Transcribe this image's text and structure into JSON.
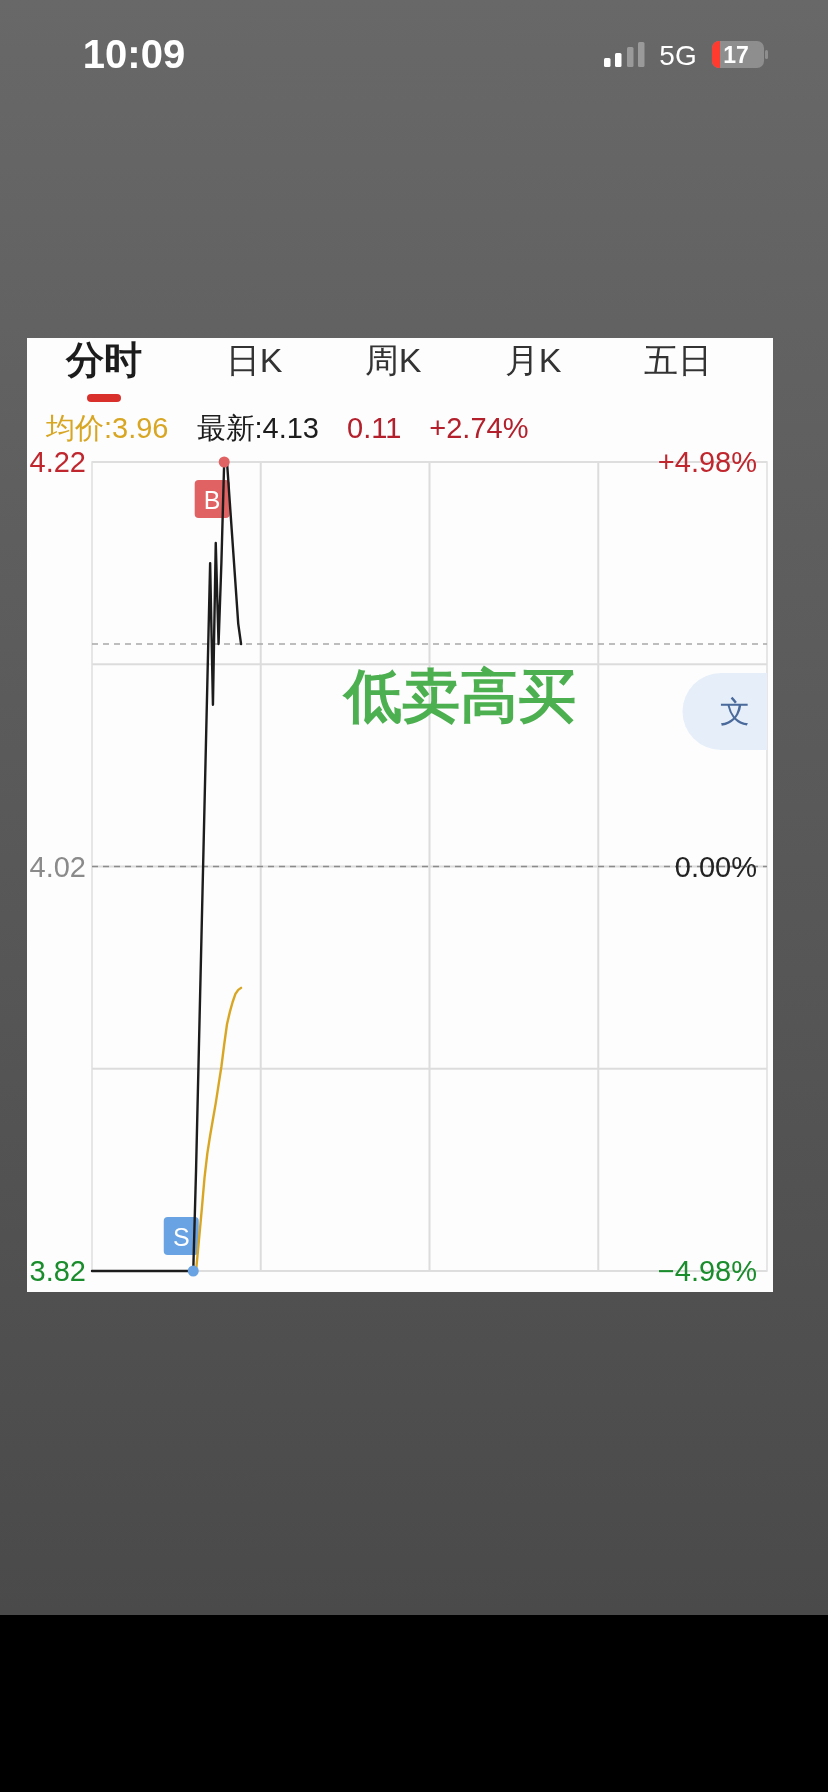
{
  "chart_data": {
    "type": "line",
    "categories": [
      null,
      null,
      null,
      null,
      null,
      null,
      null,
      null,
      null,
      null,
      null,
      null,
      null,
      null,
      null,
      null,
      null,
      null,
      null,
      null,
      null,
      null,
      null,
      null,
      null,
      null,
      null,
      null,
      null,
      null,
      null,
      null,
      null,
      null,
      null,
      null,
      null,
      null,
      null,
      null,
      null,
      null,
      null,
      null,
      null,
      null,
      null,
      null,
      null,
      null,
      null,
      null,
      null,
      null,
      null,
      null,
      null,
      null,
      null,
      null,
      null,
      null,
      null,
      null,
      null,
      null,
      null,
      null,
      null,
      null,
      null,
      null,
      null,
      null,
      null,
      null,
      null,
      null,
      null,
      null,
      null,
      null,
      null,
      null,
      null,
      null,
      null,
      null,
      null,
      null,
      null,
      null,
      null,
      null,
      null,
      null,
      null,
      null,
      null,
      null,
      null,
      null,
      null,
      null,
      null,
      null,
      null,
      null,
      null,
      null,
      null,
      null,
      null,
      null,
      null,
      null,
      null,
      null,
      null,
      null,
      null,
      null,
      null,
      null,
      null,
      null,
      null,
      null,
      null,
      null,
      null,
      null,
      null,
      null,
      null,
      null,
      null,
      null,
      null,
      null,
      null,
      null,
      null,
      null,
      null,
      null,
      null,
      null,
      null,
      null,
      null,
      null,
      null,
      null,
      null,
      null,
      null,
      null,
      null,
      null,
      null,
      null,
      null,
      null,
      null,
      null,
      null,
      null,
      null,
      null,
      null,
      null,
      null,
      null,
      null,
      null,
      null,
      null,
      null,
      null,
      null,
      null,
      null,
      null,
      null,
      null,
      null,
      null,
      null,
      null,
      null,
      null,
      null,
      null,
      null,
      null,
      null,
      null,
      null,
      null,
      null,
      null,
      null,
      null,
      null,
      null,
      null,
      null,
      null,
      null,
      null,
      null,
      null,
      null,
      null,
      null,
      null,
      null,
      null,
      null,
      null,
      null,
      null,
      null,
      null,
      null,
      null,
      null,
      null,
      null,
      null,
      null,
      null,
      null,
      null,
      null,
      null,
      null,
      null,
      null,
      null
    ],
    "series": [
      {
        "name": "均价:3.96",
        "color": "#d8a623",
        "values": [
          null,
          null,
          null,
          null,
          null,
          null,
          null,
          null,
          null,
          null,
          null,
          null,
          null,
          null,
          null,
          null,
          null,
          null,
          null,
          null,
          null,
          null,
          null,
          null,
          null,
          null,
          null,
          null,
          null,
          null,
          null,
          null,
          null,
          null,
          null,
          null,
          null,
          3.82,
          3.835,
          3.85,
          3.866,
          3.878,
          3.887,
          3.895,
          3.903,
          3.912,
          3.921,
          3.932,
          3.942,
          3.948,
          3.953,
          3.957,
          3.959,
          3.96,
          null,
          null,
          null,
          null,
          null,
          null,
          null,
          null,
          null,
          null,
          null,
          null,
          null,
          null,
          null,
          null,
          null,
          null,
          null,
          null,
          null,
          null,
          null,
          null,
          null,
          null,
          null,
          null,
          null,
          null,
          null,
          null,
          null,
          null,
          null,
          null,
          null,
          null,
          null,
          null,
          null,
          null,
          null,
          null,
          null,
          null,
          null,
          null,
          null,
          null,
          null,
          null,
          null,
          null,
          null,
          null,
          null,
          null,
          null,
          null,
          null,
          null,
          null,
          null,
          null,
          null,
          null,
          null,
          null,
          null,
          null,
          null,
          null,
          null,
          null,
          null,
          null,
          null,
          null,
          null,
          null,
          null,
          null,
          null,
          null,
          null,
          null,
          null,
          null,
          null,
          null,
          null,
          null,
          null,
          null,
          null,
          null,
          null,
          null,
          null,
          null,
          null,
          null,
          null,
          null,
          null,
          null,
          null,
          null,
          null,
          null,
          null,
          null,
          null,
          null,
          null,
          null,
          null,
          null,
          null,
          null,
          null,
          null,
          null,
          null,
          null,
          null,
          null,
          null,
          null,
          null,
          null,
          null,
          null,
          null,
          null,
          null,
          null,
          null,
          null,
          null,
          null,
          null,
          null,
          null,
          null,
          null,
          null,
          null,
          null,
          null,
          null,
          null,
          null,
          null,
          null,
          null,
          null,
          null,
          null,
          null,
          null,
          null,
          null,
          null,
          null,
          null,
          null,
          null,
          null,
          null,
          null,
          null,
          null,
          null,
          null,
          null,
          null,
          null,
          null,
          null,
          null,
          null,
          null,
          null,
          null,
          null
        ]
      },
      {
        "name": "最新:4.13",
        "color": "#1c1c1c",
        "values": [
          3.82,
          3.82,
          3.82,
          3.82,
          3.82,
          3.82,
          3.82,
          3.82,
          3.82,
          3.82,
          3.82,
          3.82,
          3.82,
          3.82,
          3.82,
          3.82,
          3.82,
          3.82,
          3.82,
          3.82,
          3.82,
          3.82,
          3.82,
          3.82,
          3.82,
          3.82,
          3.82,
          3.82,
          3.82,
          3.82,
          3.82,
          3.82,
          3.82,
          3.82,
          3.82,
          3.82,
          3.82,
          3.87,
          3.93,
          3.99,
          4.05,
          4.11,
          4.17,
          4.1,
          4.18,
          4.13,
          4.17,
          4.22,
          4.22,
          4.2,
          4.18,
          4.16,
          4.14,
          4.13,
          null,
          null,
          null,
          null,
          null,
          null,
          null,
          null,
          null,
          null,
          null,
          null,
          null,
          null,
          null,
          null,
          null,
          null,
          null,
          null,
          null,
          null,
          null,
          null,
          null,
          null,
          null,
          null,
          null,
          null,
          null,
          null,
          null,
          null,
          null,
          null,
          null,
          null,
          null,
          null,
          null,
          null,
          null,
          null,
          null,
          null,
          null,
          null,
          null,
          null,
          null,
          null,
          null,
          null,
          null,
          null,
          null,
          null,
          null,
          null,
          null,
          null,
          null,
          null,
          null,
          null,
          null,
          null,
          null,
          null,
          null,
          null,
          null,
          null,
          null,
          null,
          null,
          null,
          null,
          null,
          null,
          null,
          null,
          null,
          null,
          null,
          null,
          null,
          null,
          null,
          null,
          null,
          null,
          null,
          null,
          null,
          null,
          null,
          null,
          null,
          null,
          null,
          null,
          null,
          null,
          null,
          null,
          null,
          null,
          null,
          null,
          null,
          null,
          null,
          null,
          null,
          null,
          null,
          null,
          null,
          null,
          null,
          null,
          null,
          null,
          null,
          null,
          null,
          null,
          null,
          null,
          null,
          null,
          null,
          null,
          null,
          null,
          null,
          null,
          null,
          null,
          null,
          null,
          null,
          null,
          null,
          null,
          null,
          null,
          null,
          null,
          null,
          null,
          null,
          null,
          null,
          null,
          null,
          null,
          null,
          null,
          null,
          null,
          null,
          null,
          null,
          null,
          null,
          null,
          null,
          null,
          null,
          null,
          null,
          null,
          null,
          null,
          null,
          null,
          null,
          null,
          null,
          null,
          null,
          null,
          null,
          null
        ]
      },
      {
        "name": "B",
        "type": "scatter",
        "marker": "circle",
        "color": "#e06262",
        "values": [
          null,
          null,
          null,
          null,
          null,
          null,
          null,
          null,
          null,
          null,
          null,
          null,
          null,
          null,
          null,
          null,
          null,
          null,
          null,
          null,
          null,
          null,
          null,
          null,
          null,
          null,
          null,
          null,
          null,
          null,
          null,
          null,
          null,
          null,
          null,
          null,
          null,
          null,
          null,
          null,
          null,
          null,
          null,
          null,
          null,
          null,
          null,
          4.22,
          null,
          null,
          null,
          null,
          null,
          null,
          null,
          null,
          null,
          null,
          null,
          null,
          null,
          null,
          null,
          null,
          null,
          null,
          null,
          null,
          null,
          null,
          null,
          null,
          null,
          null,
          null,
          null,
          null,
          null,
          null,
          null,
          null,
          null,
          null,
          null,
          null,
          null,
          null,
          null,
          null,
          null,
          null,
          null,
          null,
          null,
          null,
          null,
          null,
          null,
          null,
          null,
          null,
          null,
          null,
          null,
          null,
          null,
          null,
          null,
          null,
          null,
          null,
          null,
          null,
          null,
          null,
          null,
          null,
          null,
          null,
          null,
          null,
          null,
          null,
          null,
          null,
          null,
          null,
          null,
          null,
          null,
          null,
          null,
          null,
          null,
          null,
          null,
          null,
          null,
          null,
          null,
          null,
          null,
          null,
          null,
          null,
          null,
          null,
          null,
          null,
          null,
          null,
          null,
          null,
          null,
          null,
          null,
          null,
          null,
          null,
          null,
          null,
          null,
          null,
          null,
          null,
          null,
          null,
          null,
          null,
          null,
          null,
          null,
          null,
          null,
          null,
          null,
          null,
          null,
          null,
          null,
          null,
          null,
          null,
          null,
          null,
          null,
          null,
          null,
          null,
          null,
          null,
          null,
          null,
          null,
          null,
          null,
          null,
          null,
          null,
          null,
          null,
          null,
          null,
          null,
          null,
          null,
          null,
          null,
          null,
          null,
          null,
          null,
          null,
          null,
          null,
          null,
          null,
          null,
          null,
          null,
          null,
          null,
          null,
          null,
          null,
          null,
          null,
          null,
          null,
          null,
          null,
          null,
          null,
          null,
          null,
          null,
          null,
          null,
          null,
          null,
          null
        ]
      },
      {
        "name": "S",
        "type": "scatter",
        "marker": "circle",
        "color": "#6aa3e4",
        "values": [
          null,
          null,
          null,
          null,
          null,
          null,
          null,
          null,
          null,
          null,
          null,
          null,
          null,
          null,
          null,
          null,
          null,
          null,
          null,
          null,
          null,
          null,
          null,
          null,
          null,
          null,
          null,
          null,
          null,
          null,
          null,
          null,
          null,
          null,
          null,
          null,
          3.82,
          null,
          null,
          null,
          null,
          null,
          null,
          null,
          null,
          null,
          null,
          null,
          null,
          null,
          null,
          null,
          null,
          null,
          null,
          null,
          null,
          null,
          null,
          null,
          null,
          null,
          null,
          null,
          null,
          null,
          null,
          null,
          null,
          null,
          null,
          null,
          null,
          null,
          null,
          null,
          null,
          null,
          null,
          null,
          null,
          null,
          null,
          null,
          null,
          null,
          null,
          null,
          null,
          null,
          null,
          null,
          null,
          null,
          null,
          null,
          null,
          null,
          null,
          null,
          null,
          null,
          null,
          null,
          null,
          null,
          null,
          null,
          null,
          null,
          null,
          null,
          null,
          null,
          null,
          null,
          null,
          null,
          null,
          null,
          null,
          null,
          null,
          null,
          null,
          null,
          null,
          null,
          null,
          null,
          null,
          null,
          null,
          null,
          null,
          null,
          null,
          null,
          null,
          null,
          null,
          null,
          null,
          null,
          null,
          null,
          null,
          null,
          null,
          null,
          null,
          null,
          null,
          null,
          null,
          null,
          null,
          null,
          null,
          null,
          null,
          null,
          null,
          null,
          null,
          null,
          null,
          null,
          null,
          null,
          null,
          null,
          null,
          null,
          null,
          null,
          null,
          null,
          null,
          null,
          null,
          null,
          null,
          null,
          null,
          null,
          null,
          null,
          null,
          null,
          null,
          null,
          null,
          null,
          null,
          null,
          null,
          null,
          null,
          null,
          null,
          null,
          null,
          null,
          null,
          null,
          null,
          null,
          null,
          null,
          null,
          null,
          null,
          null,
          null,
          null,
          null,
          null,
          null,
          null,
          null,
          null,
          null,
          null,
          null,
          null,
          null,
          null,
          null,
          null,
          null,
          null,
          null,
          null,
          null,
          null,
          null,
          null,
          null,
          null,
          null
        ]
      }
    ],
    "ylim": [
      3.82,
      4.22
    ],
    "yticks": [
      3.82,
      {
        "value": 3.92,
        "label": null
      },
      4.02,
      {
        "value": 4.12,
        "label": null
      },
      4.22
    ],
    "y2lim": [
      -4.98,
      4.98
    ],
    "y2ticks": [
      {
        "value": -4.98,
        "label": "−4.98%"
      },
      {
        "value": 0,
        "label": "0.00%"
      },
      {
        "value": 4.98,
        "label": "+4.98%"
      }
    ],
    "ref_lines": [
      {
        "axis": "y",
        "value": 4.02,
        "line_style": "dashed",
        "color": "#8c8c8c"
      },
      {
        "axis": "y",
        "value": 4.13,
        "line_style": "dashed",
        "color": "#a8a8a8"
      }
    ],
    "grid": true,
    "legend": "top",
    "annotations": [
      "10:09",
      "5G",
      "17",
      "分时",
      "日K",
      "周K",
      "月K",
      "五日",
      "0.11",
      "+2.74%",
      "低卖高买",
      "文"
    ]
  }
}
